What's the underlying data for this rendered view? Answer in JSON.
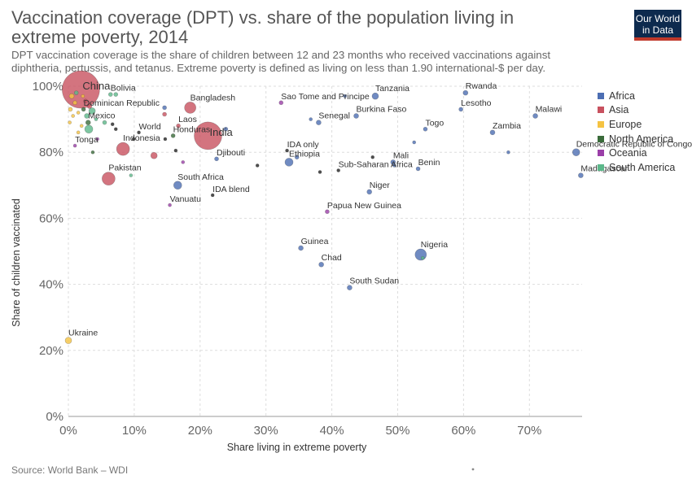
{
  "header": {
    "title": "Vaccination coverage (DPT) vs. share of the population living in extreme poverty, 2014",
    "subtitle": "DPT vaccination coverage is the share of children between 12 and 23 months who received vaccinations against diphtheria, pertussis, and tetanus. Extreme poverty is defined as living on less than 1.90 international-$ per day.",
    "logo_line1": "Our World",
    "logo_line2": "in Data"
  },
  "footer": {
    "source": "Source: World Bank – WDI"
  },
  "legend": [
    {
      "label": "Africa",
      "color": "#4c6eb3"
    },
    {
      "label": "Asia",
      "color": "#c8515f"
    },
    {
      "label": "Europe",
      "color": "#f5c342"
    },
    {
      "label": "North America",
      "color": "#3a6b3a"
    },
    {
      "label": "Oceania",
      "color": "#9b3fa8"
    },
    {
      "label": "South America",
      "color": "#5cb88a"
    }
  ],
  "chart_data": {
    "type": "scatter",
    "title": "Vaccination coverage (DPT) vs. share of the population living in extreme poverty, 2014",
    "xlabel": "Share living in extreme poverty",
    "ylabel": "Share of children vaccinated",
    "xlim": [
      0,
      78
    ],
    "ylim": [
      0,
      100
    ],
    "x_ticks": [
      0,
      10,
      20,
      30,
      40,
      50,
      60,
      70
    ],
    "x_tick_labels": [
      "0%",
      "10%",
      "20%",
      "30%",
      "40%",
      "50%",
      "60%",
      "70%"
    ],
    "y_ticks": [
      0,
      20,
      40,
      60,
      80,
      100
    ],
    "y_tick_labels": [
      "0%",
      "20%",
      "40%",
      "60%",
      "80%",
      "100%"
    ],
    "grid": true,
    "legend_position": "right",
    "points": [
      {
        "label": "China",
        "x": 1.9,
        "y": 99,
        "r": 23,
        "color": "#c8515f"
      },
      {
        "label": "India",
        "x": 21.2,
        "y": 85,
        "r": 17,
        "color": "#c8515f"
      },
      {
        "label": "Bangladesh",
        "x": 18.5,
        "y": 93.5,
        "r": 7,
        "color": "#c8515f"
      },
      {
        "label": "Pakistan",
        "x": 6.1,
        "y": 72,
        "r": 8,
        "color": "#c8515f"
      },
      {
        "label": "Indonesia",
        "x": 8.3,
        "y": 81,
        "r": 8,
        "color": "#c8515f"
      },
      {
        "label": "Laos",
        "x": 16.7,
        "y": 88,
        "r": 2.5,
        "color": "#c8515f"
      },
      {
        "label": "Bolivia",
        "x": 6.4,
        "y": 97.5,
        "r": 2.5,
        "color": "#5cb88a"
      },
      {
        "label": "Dominican Republic",
        "x": 2.3,
        "y": 93,
        "r": 2.5,
        "color": "#3a6b3a"
      },
      {
        "label": "Mexico",
        "x": 3,
        "y": 89,
        "r": 3,
        "color": "#3a6b3a"
      },
      {
        "label": "World",
        "x": 10.7,
        "y": 86,
        "r": 2,
        "color": "#222222"
      },
      {
        "label": "Honduras",
        "x": 15.9,
        "y": 85,
        "r": 2.5,
        "color": "#3a6b3a"
      },
      {
        "label": "Tonga",
        "x": 1,
        "y": 82,
        "r": 2,
        "color": "#9b3fa8"
      },
      {
        "label": "Djibouti",
        "x": 22.5,
        "y": 78,
        "r": 2.5,
        "color": "#4c6eb3"
      },
      {
        "label": "South Africa",
        "x": 16.6,
        "y": 70,
        "r": 5,
        "color": "#4c6eb3"
      },
      {
        "label": "IDA blend",
        "x": 21.9,
        "y": 67,
        "r": 2,
        "color": "#222222"
      },
      {
        "label": "Vanuatu",
        "x": 15.4,
        "y": 64,
        "r": 2,
        "color": "#9b3fa8"
      },
      {
        "label": "Sao Tome and Principe",
        "x": 32.3,
        "y": 95,
        "r": 2.5,
        "color": "#9b3fa8"
      },
      {
        "label": "Tanzania",
        "x": 46.6,
        "y": 97,
        "r": 4,
        "color": "#4c6eb3"
      },
      {
        "label": "Rwanda",
        "x": 60.3,
        "y": 98,
        "r": 3,
        "color": "#4c6eb3"
      },
      {
        "label": "Lesotho",
        "x": 59.6,
        "y": 93,
        "r": 2.5,
        "color": "#4c6eb3"
      },
      {
        "label": "Malawi",
        "x": 70.9,
        "y": 91,
        "r": 3,
        "color": "#4c6eb3"
      },
      {
        "label": "Burkina Faso",
        "x": 43.7,
        "y": 91,
        "r": 3,
        "color": "#4c6eb3"
      },
      {
        "label": "Senegal",
        "x": 38,
        "y": 89,
        "r": 3,
        "color": "#4c6eb3"
      },
      {
        "label": "Togo",
        "x": 54.2,
        "y": 87,
        "r": 2.5,
        "color": "#4c6eb3"
      },
      {
        "label": "Zambia",
        "x": 64.4,
        "y": 86,
        "r": 3,
        "color": "#4c6eb3"
      },
      {
        "label": "Democratic Republic of Congo",
        "x": 77.1,
        "y": 80,
        "r": 4.5,
        "color": "#4c6eb3"
      },
      {
        "label": "Madagascar",
        "x": 77.8,
        "y": 73,
        "r": 3,
        "color": "#4c6eb3"
      },
      {
        "label": "IDA only",
        "x": 33.2,
        "y": 80.5,
        "r": 2,
        "color": "#222222"
      },
      {
        "label": "Ethiopia",
        "x": 33.5,
        "y": 77,
        "r": 5,
        "color": "#4c6eb3"
      },
      {
        "label": "Sub-Saharan Africa",
        "x": 41,
        "y": 74.5,
        "r": 2,
        "color": "#222222"
      },
      {
        "label": "Mali",
        "x": 49.3,
        "y": 77,
        "r": 3,
        "color": "#4c6eb3"
      },
      {
        "label": "Benin",
        "x": 53.1,
        "y": 75,
        "r": 2.5,
        "color": "#4c6eb3"
      },
      {
        "label": "Niger",
        "x": 45.7,
        "y": 68,
        "r": 3,
        "color": "#4c6eb3"
      },
      {
        "label": "Papua New Guinea",
        "x": 39.3,
        "y": 62,
        "r": 2.5,
        "color": "#9b3fa8"
      },
      {
        "label": "Guinea",
        "x": 35.3,
        "y": 51,
        "r": 3,
        "color": "#4c6eb3"
      },
      {
        "label": "Nigeria",
        "x": 53.5,
        "y": 49,
        "r": 7,
        "color": "#4c6eb3"
      },
      {
        "label": "Chad",
        "x": 38.4,
        "y": 46,
        "r": 3,
        "color": "#4c6eb3"
      },
      {
        "label": "South Sudan",
        "x": 42.7,
        "y": 39,
        "r": 3,
        "color": "#4c6eb3"
      },
      {
        "label": "Ukraine",
        "x": 0,
        "y": 23,
        "r": 4,
        "color": "#f5c342"
      },
      {
        "label": "",
        "x": 0.5,
        "y": 97,
        "r": 3,
        "color": "#f5c342"
      },
      {
        "label": "",
        "x": 1,
        "y": 95,
        "r": 2.5,
        "color": "#f5c342"
      },
      {
        "label": "",
        "x": 0.3,
        "y": 93,
        "r": 2.5,
        "color": "#f5c342"
      },
      {
        "label": "",
        "x": 0.7,
        "y": 91,
        "r": 2,
        "color": "#f5c342"
      },
      {
        "label": "",
        "x": 0.2,
        "y": 89,
        "r": 2,
        "color": "#f5c342"
      },
      {
        "label": "",
        "x": 1.5,
        "y": 92,
        "r": 2,
        "color": "#f5c342"
      },
      {
        "label": "",
        "x": 2,
        "y": 88,
        "r": 2,
        "color": "#f5c342"
      },
      {
        "label": "",
        "x": 1.2,
        "y": 98,
        "r": 2.5,
        "color": "#5cb88a"
      },
      {
        "label": "",
        "x": 2.6,
        "y": 95.5,
        "r": 2.5,
        "color": "#c8515f"
      },
      {
        "label": "",
        "x": 3.2,
        "y": 94,
        "r": 3,
        "color": "#c8515f"
      },
      {
        "label": "",
        "x": 3.6,
        "y": 92.5,
        "r": 4,
        "color": "#5cb88a"
      },
      {
        "label": "",
        "x": 2.8,
        "y": 91,
        "r": 3,
        "color": "#5cb88a"
      },
      {
        "label": "",
        "x": 3.1,
        "y": 87,
        "r": 5,
        "color": "#5cb88a"
      },
      {
        "label": "",
        "x": 4.2,
        "y": 90,
        "r": 2,
        "color": "#5cb88a"
      },
      {
        "label": "",
        "x": 5.5,
        "y": 89,
        "r": 2.5,
        "color": "#5cb88a"
      },
      {
        "label": "",
        "x": 7.2,
        "y": 97.5,
        "r": 2.5,
        "color": "#5cb88a"
      },
      {
        "label": "",
        "x": 2.2,
        "y": 97,
        "r": 2,
        "color": "#f5c342"
      },
      {
        "label": "",
        "x": 4.4,
        "y": 84,
        "r": 2,
        "color": "#9b3fa8"
      },
      {
        "label": "",
        "x": 3.7,
        "y": 80,
        "r": 2,
        "color": "#3a6b3a"
      },
      {
        "label": "",
        "x": 1.5,
        "y": 86,
        "r": 2,
        "color": "#f5c342"
      },
      {
        "label": "",
        "x": 6.7,
        "y": 88.5,
        "r": 2,
        "color": "#222222"
      },
      {
        "label": "",
        "x": 7.2,
        "y": 87,
        "r": 2,
        "color": "#222222"
      },
      {
        "label": "",
        "x": 9.9,
        "y": 84,
        "r": 2,
        "color": "#222222"
      },
      {
        "label": "",
        "x": 9.5,
        "y": 73,
        "r": 2,
        "color": "#5cb88a"
      },
      {
        "label": "",
        "x": 13,
        "y": 79,
        "r": 4,
        "color": "#c8515f"
      },
      {
        "label": "",
        "x": 14.6,
        "y": 93.5,
        "r": 2.5,
        "color": "#4c6eb3"
      },
      {
        "label": "",
        "x": 14.6,
        "y": 91.5,
        "r": 2.5,
        "color": "#c8515f"
      },
      {
        "label": "",
        "x": 14.7,
        "y": 84,
        "r": 2,
        "color": "#222222"
      },
      {
        "label": "",
        "x": 16.3,
        "y": 80.5,
        "r": 2,
        "color": "#222222"
      },
      {
        "label": "",
        "x": 17.4,
        "y": 77,
        "r": 2,
        "color": "#9b3fa8"
      },
      {
        "label": "",
        "x": 23.9,
        "y": 87,
        "r": 2.5,
        "color": "#4c6eb3"
      },
      {
        "label": "",
        "x": 28.7,
        "y": 76,
        "r": 2,
        "color": "#222222"
      },
      {
        "label": "",
        "x": 34.7,
        "y": 78.5,
        "r": 2.5,
        "color": "#4c6eb3"
      },
      {
        "label": "",
        "x": 36.8,
        "y": 90,
        "r": 2,
        "color": "#4c6eb3"
      },
      {
        "label": "",
        "x": 38.2,
        "y": 74,
        "r": 2,
        "color": "#222222"
      },
      {
        "label": "",
        "x": 42,
        "y": 97,
        "r": 2,
        "color": "#4c6eb3"
      },
      {
        "label": "",
        "x": 46.2,
        "y": 78.5,
        "r": 2,
        "color": "#222222"
      },
      {
        "label": "",
        "x": 52.5,
        "y": 83,
        "r": 2,
        "color": "#4c6eb3"
      },
      {
        "label": "",
        "x": 66.8,
        "y": 80,
        "r": 2,
        "color": "#4c6eb3"
      },
      {
        "label": "",
        "x": 49.5,
        "y": 76,
        "r": 2,
        "color": "#4c6eb3"
      },
      {
        "label": "",
        "x": 53.8,
        "y": 48,
        "r": 2,
        "color": "#5cb88a"
      }
    ]
  }
}
